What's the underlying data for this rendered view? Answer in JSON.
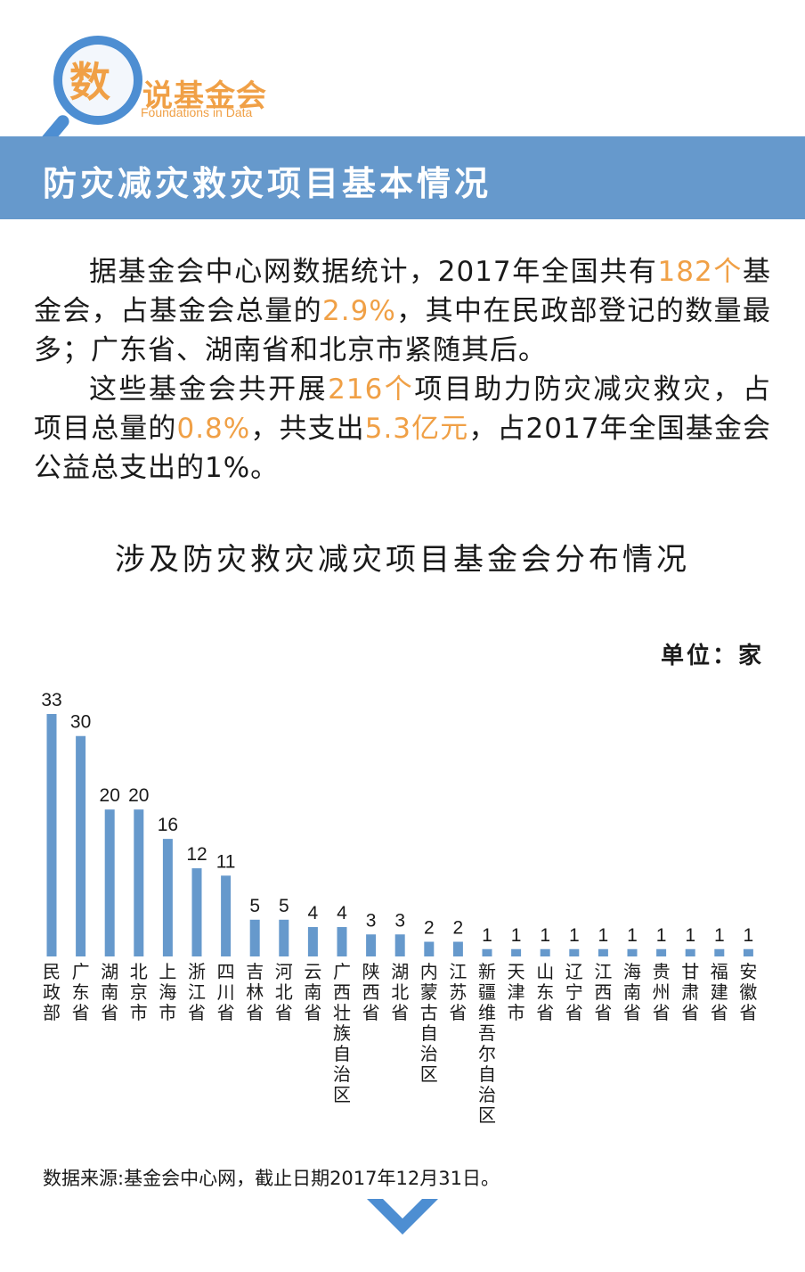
{
  "logo": {
    "char": "数",
    "name": "说基金会",
    "subtitle": "Foundations in Data",
    "icon": "magnifier-icon"
  },
  "header": {
    "title": "防灾减灾救灾项目基本情况"
  },
  "intro": {
    "p1_a": "据基金会中心网数据统计，2017年全国共有",
    "p1_hl1": "182个",
    "p1_b": "基金会，占基金会总量的",
    "p1_hl2": "2.9%",
    "p1_c": "，其中在民政部登记的数量最多；广东省、湖南省和北京市紧随其后。",
    "p2_a": "这些基金会共开展",
    "p2_hl1": "216个",
    "p2_b": "项目助力防灾减灾救灾，占项目总量的",
    "p2_hl2": "0.8%",
    "p2_c": "，共支出",
    "p2_hl3": "5.3亿元",
    "p2_d": "，占2017年全国基金会公益总支出的1%。"
  },
  "colors": {
    "accent_orange": "#f0a046",
    "bar_blue": "#6699cc",
    "title_bar": "#6699cc"
  },
  "chart_data": {
    "type": "bar",
    "title": "涉及防灾救灾减灾项目基金会分布情况",
    "unit_label": "单位：家",
    "categories": [
      "民政部",
      "广东省",
      "湖南省",
      "北京市",
      "上海市",
      "浙江省",
      "四川省",
      "吉林省",
      "河北省",
      "云南省",
      "广西壮族自治区",
      "陕西省",
      "湖北省",
      "内蒙古自治区",
      "江苏省",
      "新疆维吾尔自治区",
      "天津市",
      "山东省",
      "辽宁省",
      "江西省",
      "海南省",
      "贵州省",
      "甘肃省",
      "福建省",
      "安徽省"
    ],
    "values": [
      33,
      30,
      20,
      20,
      16,
      12,
      11,
      5,
      5,
      4,
      4,
      3,
      3,
      2,
      2,
      1,
      1,
      1,
      1,
      1,
      1,
      1,
      1,
      1,
      1
    ],
    "ylim": [
      0,
      33
    ],
    "grid": false,
    "data_labels": true
  },
  "footer": {
    "source": "数据来源:基金会中心网，截止日期2017年12月31日。",
    "next_icon": "chevron-down-icon"
  }
}
